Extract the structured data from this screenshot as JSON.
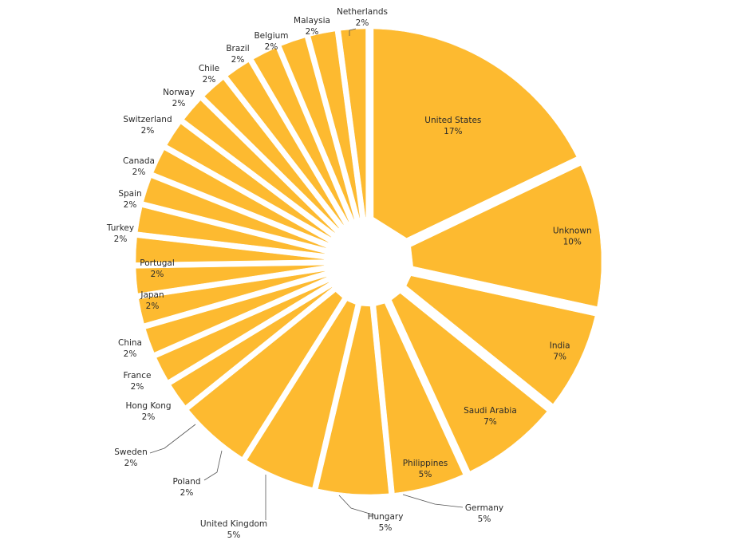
{
  "chart_data": {
    "type": "pie",
    "title": "",
    "slice_color": "#FDBA30",
    "slices": [
      {
        "label": "United States",
        "value": 17,
        "pct": "17%"
      },
      {
        "label": "Unknown",
        "value": 10,
        "pct": "10%"
      },
      {
        "label": "India",
        "value": 7,
        "pct": "7%"
      },
      {
        "label": "Saudi Arabia",
        "value": 7,
        "pct": "7%"
      },
      {
        "label": "Philippines",
        "value": 5,
        "pct": "5%"
      },
      {
        "label": "Germany",
        "value": 5,
        "pct": "5%"
      },
      {
        "label": "Hungary",
        "value": 5,
        "pct": "5%"
      },
      {
        "label": "United Kingdom",
        "value": 5,
        "pct": "5%"
      },
      {
        "label": "Poland",
        "value": 2,
        "pct": "2%"
      },
      {
        "label": "Sweden",
        "value": 2,
        "pct": "2%"
      },
      {
        "label": "Hong Kong",
        "value": 2,
        "pct": "2%"
      },
      {
        "label": "France",
        "value": 2,
        "pct": "2%"
      },
      {
        "label": "China",
        "value": 2,
        "pct": "2%"
      },
      {
        "label": "Japan",
        "value": 2,
        "pct": "2%"
      },
      {
        "label": "Portugal",
        "value": 2,
        "pct": "2%"
      },
      {
        "label": "Turkey",
        "value": 2,
        "pct": "2%"
      },
      {
        "label": "Spain",
        "value": 2,
        "pct": "2%"
      },
      {
        "label": "Canada",
        "value": 2,
        "pct": "2%"
      },
      {
        "label": "Switzerland",
        "value": 2,
        "pct": "2%"
      },
      {
        "label": "Norway",
        "value": 2,
        "pct": "2%"
      },
      {
        "label": "Chile",
        "value": 2,
        "pct": "2%"
      },
      {
        "label": "Brazil",
        "value": 2,
        "pct": "2%"
      },
      {
        "label": "Belgium",
        "value": 2,
        "pct": "2%"
      },
      {
        "label": "Malaysia",
        "value": 2,
        "pct": "2%"
      },
      {
        "label": "Netherlands",
        "value": 2,
        "pct": "2%"
      }
    ]
  }
}
